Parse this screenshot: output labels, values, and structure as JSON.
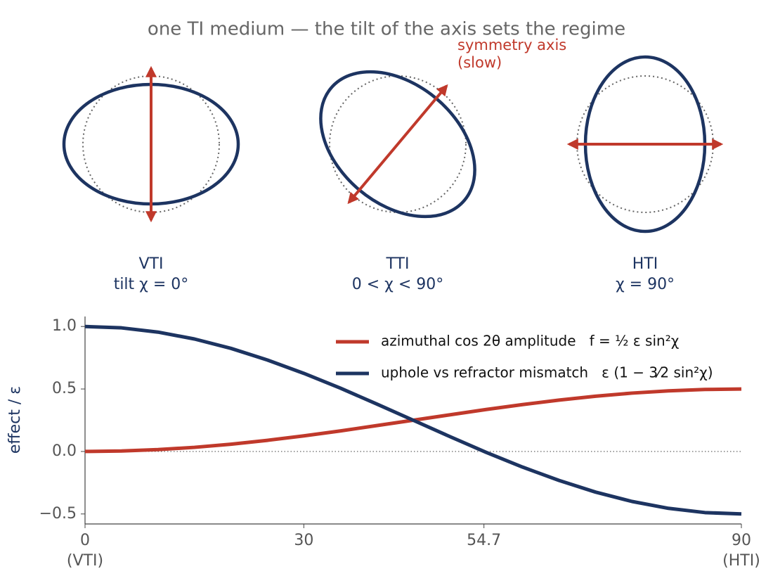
{
  "title": "one TI medium — the tilt of the axis sets the regime",
  "diagram": {
    "annotation": [
      "symmetry axis",
      "(slow)"
    ],
    "panels": [
      {
        "name": "VTI",
        "subtitle": "tilt χ = 0°",
        "tilt": 0
      },
      {
        "name": "TTI",
        "subtitle": "0 < χ < 90°",
        "tilt": 40
      },
      {
        "name": "HTI",
        "subtitle": "χ = 90°",
        "tilt": 90
      }
    ]
  },
  "chart_data": {
    "type": "line",
    "ylabel": "effect / ε",
    "x": [
      0,
      5,
      10,
      15,
      20,
      25,
      30,
      35,
      40,
      45,
      50,
      55,
      60,
      65,
      70,
      75,
      80,
      85,
      90
    ],
    "series": [
      {
        "name": "azimuthal cos 2θ amplitude   f = ½ ε sin²χ",
        "color": "#c0392b",
        "values": [
          0,
          0.004,
          0.015,
          0.033,
          0.058,
          0.089,
          0.125,
          0.164,
          0.207,
          0.25,
          0.293,
          0.336,
          0.375,
          0.411,
          0.442,
          0.467,
          0.485,
          0.496,
          0.5
        ]
      },
      {
        "name": "uphole vs refractor mismatch   ε (1 − 3⁄2 sin²χ)",
        "color": "#1d3461",
        "values": [
          1,
          0.989,
          0.955,
          0.9,
          0.825,
          0.732,
          0.625,
          0.507,
          0.38,
          0.25,
          0.12,
          -0.007,
          -0.125,
          -0.232,
          -0.325,
          -0.4,
          -0.455,
          -0.489,
          -0.5
        ]
      }
    ],
    "xlim": [
      0,
      90
    ],
    "xticks": [
      0,
      30,
      54.7,
      90
    ],
    "x_end_labels": [
      "(VTI)",
      "(HTI)"
    ],
    "ylim": [
      -0.58,
      1.08
    ],
    "yticks": [
      {
        "value": 1,
        "label": "1.0"
      },
      0.5,
      {
        "value": 0,
        "label": "0.0"
      },
      {
        "value": -0.5,
        "label": "−0.5"
      }
    ],
    "hline": 0,
    "grid": false
  }
}
